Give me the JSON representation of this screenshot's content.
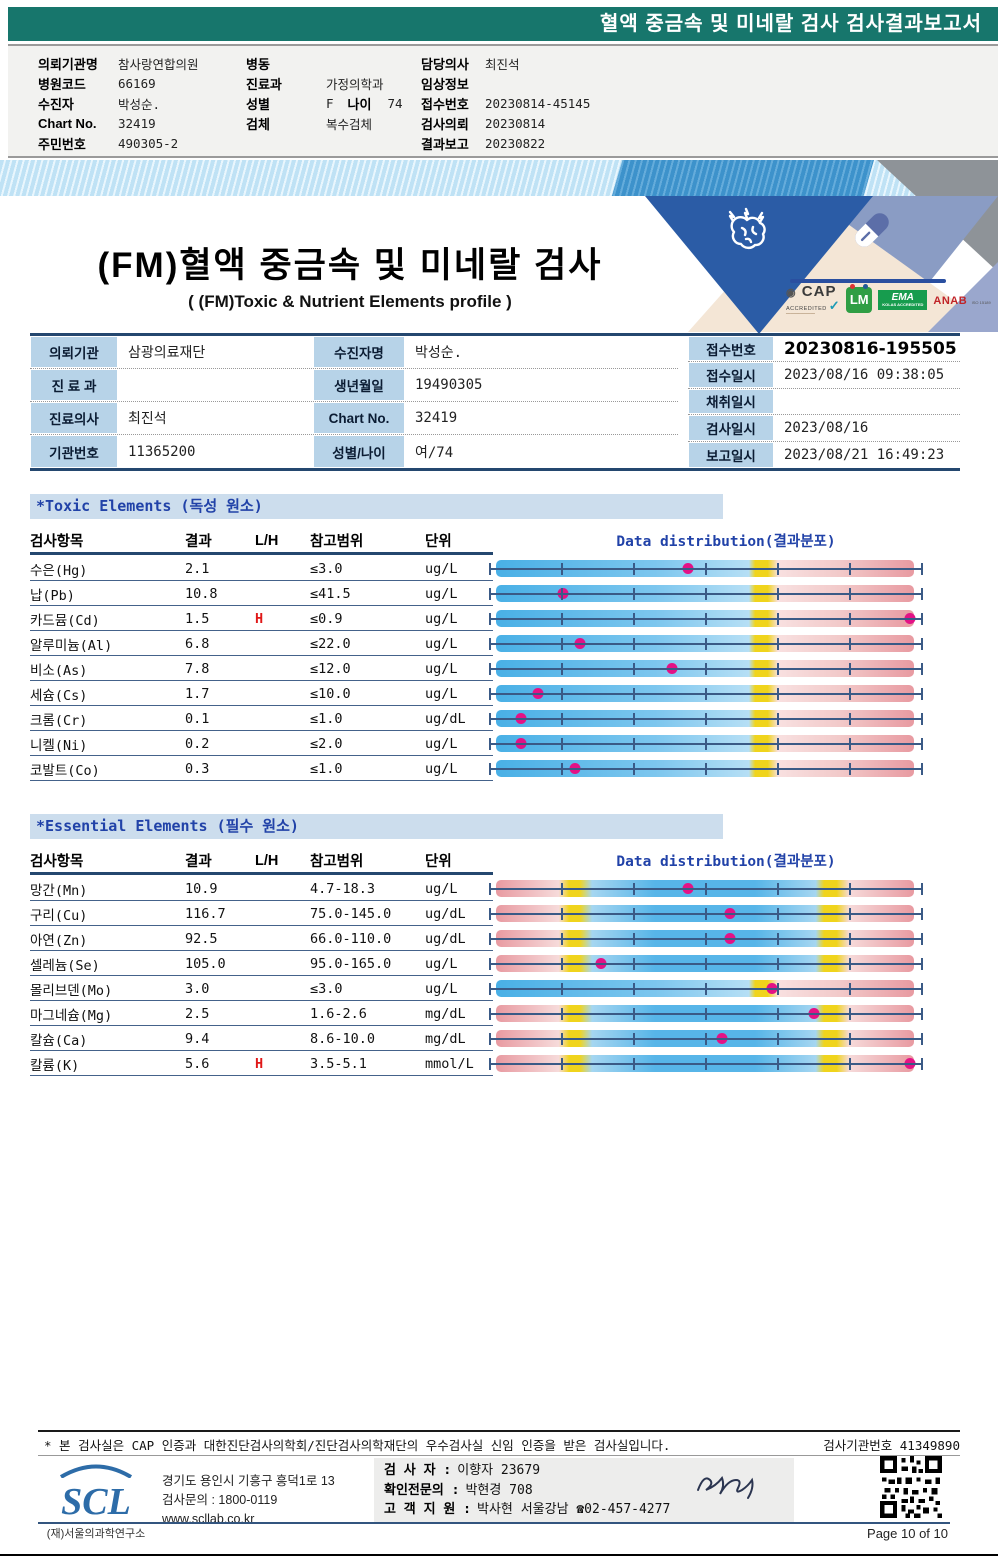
{
  "title_bar": "혈액 중금속 및 미네랄 검사 검사결과보고서",
  "patient_header": {
    "col1": [
      {
        "label": "의뢰기관명",
        "value": "참사랑연합의원"
      },
      {
        "label": "병원코드",
        "value": "66169"
      },
      {
        "label": "수진자",
        "value": "박성순."
      },
      {
        "label": "Chart No.",
        "value": "32419"
      },
      {
        "label": "주민번호",
        "value": "490305-2"
      }
    ],
    "col2": [
      {
        "label": "병동",
        "value": ""
      },
      {
        "label": "진료과",
        "value": "가정의학과"
      },
      {
        "label": "성별",
        "value": "F",
        "label2": "나이",
        "value2": "74"
      },
      {
        "label": "검체",
        "value": "복수검체"
      }
    ],
    "col3": [
      {
        "label": "담당의사",
        "value": "최진석"
      },
      {
        "label": "임상정보",
        "value": ""
      },
      {
        "label": "접수번호",
        "value": "20230814-45145"
      },
      {
        "label": "검사의뢰",
        "value": "20230814"
      },
      {
        "label": "결과보고",
        "value": "20230822"
      }
    ]
  },
  "banner": {
    "title": "(FM)혈액 중금속 및 미네랄 검사",
    "subtitle": "( (FM)Toxic & Nutrient Elements profile )",
    "logos": {
      "cap": "CAP",
      "cap_sub": "ACCREDITED",
      "lm": "LM",
      "ema": "EMA",
      "anab": "ANAB"
    }
  },
  "info_table": {
    "left": [
      {
        "label": "의뢰기관",
        "value": "삼광의료재단",
        "label2": "수진자명",
        "value2": "박성순."
      },
      {
        "label": "진 료 과",
        "value": "",
        "label2": "생년월일",
        "value2": "19490305"
      },
      {
        "label": "진료의사",
        "value": "최진석",
        "label2": "Chart No.",
        "value2": "32419"
      },
      {
        "label": "기관번호",
        "value": "11365200",
        "label2": "성별/나이",
        "value2": "여/74"
      }
    ],
    "right": [
      {
        "label": "접수번호",
        "value": "20230816-195505",
        "emphasis": true
      },
      {
        "label": "접수일시",
        "value": "2023/08/16  09:38:05"
      },
      {
        "label": "채취일시",
        "value": ""
      },
      {
        "label": "검사일시",
        "value": "2023/08/16"
      },
      {
        "label": "보고일시",
        "value": "2023/08/21  16:49:23"
      }
    ]
  },
  "sections": {
    "toxic": {
      "title": "*Toxic Elements (독성 원소)",
      "columns": [
        "검사항목",
        "결과",
        "L/H",
        "참고범위",
        "단위",
        "Data distribution(결과분포)"
      ],
      "rows": [
        {
          "name": "수은(Hg)",
          "result": "2.1",
          "flag": "",
          "range": "≤3.0",
          "unit": "ug/L",
          "dot": 0.46,
          "bar": "upper"
        },
        {
          "name": "납(Pb)",
          "result": "10.8",
          "flag": "",
          "range": "≤41.5",
          "unit": "ug/L",
          "dot": 0.16,
          "bar": "upper"
        },
        {
          "name": "카드뮴(Cd)",
          "result": "1.5",
          "flag": "H",
          "range": "≤0.9",
          "unit": "ug/L",
          "dot": 0.99,
          "bar": "upper"
        },
        {
          "name": "알루미늄(Al)",
          "result": "6.8",
          "flag": "",
          "range": "≤22.0",
          "unit": "ug/L",
          "dot": 0.2,
          "bar": "upper"
        },
        {
          "name": "비소(As)",
          "result": "7.8",
          "flag": "",
          "range": "≤12.0",
          "unit": "ug/L",
          "dot": 0.42,
          "bar": "upper"
        },
        {
          "name": "세슘(Cs)",
          "result": "1.7",
          "flag": "",
          "range": "≤10.0",
          "unit": "ug/L",
          "dot": 0.1,
          "bar": "upper"
        },
        {
          "name": "크롬(Cr)",
          "result": "0.1",
          "flag": "",
          "range": "≤1.0",
          "unit": "ug/dL",
          "dot": 0.06,
          "bar": "upper"
        },
        {
          "name": "니켈(Ni)",
          "result": "0.2",
          "flag": "",
          "range": "≤2.0",
          "unit": "ug/L",
          "dot": 0.06,
          "bar": "upper"
        },
        {
          "name": "코발트(Co)",
          "result": "0.3",
          "flag": "",
          "range": "≤1.0",
          "unit": "ug/L",
          "dot": 0.19,
          "bar": "upper"
        }
      ]
    },
    "essential": {
      "title": "*Essential Elements (필수 원소)",
      "columns": [
        "검사항목",
        "결과",
        "L/H",
        "참고범위",
        "단위",
        "Data distribution(결과분포)"
      ],
      "rows": [
        {
          "name": "망간(Mn)",
          "result": "10.9",
          "flag": "",
          "range": "4.7-18.3",
          "unit": "ug/L",
          "dot": 0.46,
          "bar": "range"
        },
        {
          "name": "구리(Cu)",
          "result": "116.7",
          "flag": "",
          "range": "75.0-145.0",
          "unit": "ug/dL",
          "dot": 0.56,
          "bar": "range"
        },
        {
          "name": "아연(Zn)",
          "result": "92.5",
          "flag": "",
          "range": "66.0-110.0",
          "unit": "ug/dL",
          "dot": 0.56,
          "bar": "range"
        },
        {
          "name": "셀레늄(Se)",
          "result": "105.0",
          "flag": "",
          "range": "95.0-165.0",
          "unit": "ug/L",
          "dot": 0.25,
          "bar": "range"
        },
        {
          "name": "몰리브덴(Mo)",
          "result": "3.0",
          "flag": "",
          "range": "≤3.0",
          "unit": "ug/L",
          "dot": 0.66,
          "bar": "upper"
        },
        {
          "name": "마그네슘(Mg)",
          "result": "2.5",
          "flag": "",
          "range": "1.6-2.6",
          "unit": "mg/dL",
          "dot": 0.76,
          "bar": "range"
        },
        {
          "name": "칼슘(Ca)",
          "result": "9.4",
          "flag": "",
          "range": "8.6-10.0",
          "unit": "mg/dL",
          "dot": 0.54,
          "bar": "range"
        },
        {
          "name": "칼륨(K)",
          "result": "5.6",
          "flag": "H",
          "range": "3.5-5.1",
          "unit": "mmol/L",
          "dot": 0.99,
          "bar": "range"
        }
      ]
    }
  },
  "footer": {
    "notice": "* 본 검사실은 CAP 인증과 대한진단검사의학회/진단검사의학재단의 우수검사실 신임 인증을 받은 검사실입니다.",
    "agency_label": "검사기관번호",
    "agency_no": "41349890",
    "scl_logo": "SCL",
    "scl_name": "(재)서울의과학연구소",
    "address": "경기도 용인시 기흥구 흥덕1로 13",
    "phone": "검사문의 : 1800-0119",
    "website": "www.scllab.co.kr",
    "staff": [
      {
        "label": "검 사 자 :",
        "value": "이향자 23679"
      },
      {
        "label": "확인전문의 :",
        "value": "박현경 708"
      },
      {
        "label": "고 객 지 원 :",
        "value": "박사현 서울강남 ☎02-457-4277"
      }
    ],
    "page_label": "Page 10 of 10"
  },
  "colors": {
    "teal_header": "#17766c",
    "accent_navy": "#24476f",
    "label_blue": "#b7d3e8",
    "section_band_blue": "#ccdded",
    "section_text_blue": "#2142a8",
    "dot_pink": "#e31286",
    "flag_red": "#e01818",
    "bar_blue": "#57b5e8",
    "bar_yellow": "#f0d41c",
    "bar_pink": "#e89aa1"
  }
}
